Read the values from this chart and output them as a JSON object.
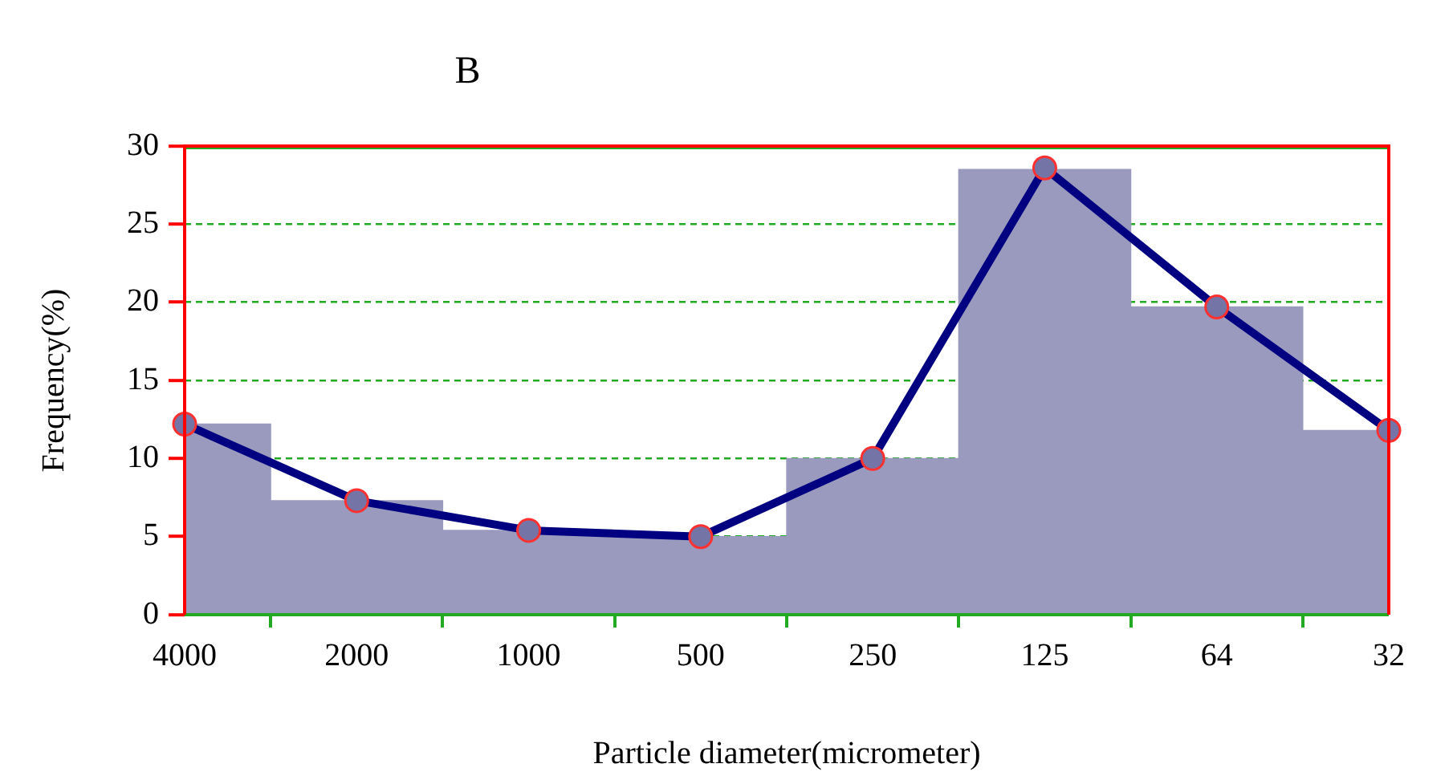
{
  "chart_data": {
    "type": "bar",
    "title": "B",
    "xlabel": "Particle diameter(micrometer)",
    "ylabel": "Frequency(%)",
    "categories": [
      "4000",
      "2000",
      "1000",
      "500",
      "250",
      "125",
      "64",
      "32"
    ],
    "series": [
      {
        "color": "#9a9abf",
        "values": [
          12.2,
          7.3,
          5.4,
          5.0,
          10.0,
          28.5,
          19.7,
          11.8
        ]
      },
      {
        "type": "line",
        "color": "#000080",
        "values": [
          12.2,
          7.3,
          5.4,
          5.0,
          10.0,
          28.6,
          19.7,
          11.8
        ]
      }
    ],
    "ylim": [
      0,
      30
    ],
    "yticks": [
      0,
      5,
      10,
      15,
      20,
      25,
      30
    ],
    "grid": "y",
    "marker": "circle",
    "line_style": "solid"
  }
}
